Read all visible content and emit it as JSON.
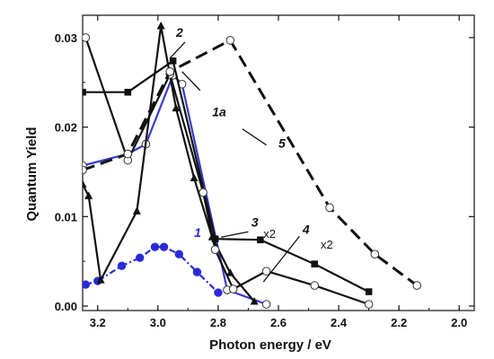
{
  "chart_data": {
    "type": "line",
    "xlabel": "Photon energy / eV",
    "ylabel": "Quantum Yield",
    "xlim": [
      3.25,
      1.95
    ],
    "ylim": [
      -0.0005,
      0.0325
    ],
    "x_reversed": true,
    "x_ticks": [
      3.2,
      3.0,
      2.8,
      2.6,
      2.4,
      2.2,
      2.0
    ],
    "x_tick_labels": [
      "3.2",
      "3.0",
      "2.8",
      "2.6",
      "2.4",
      "2.2",
      "2.0"
    ],
    "y_ticks": [
      0.0,
      0.01,
      0.02,
      0.03
    ],
    "y_tick_labels": [
      "0.00",
      "0.01",
      "0.02",
      "0.03"
    ],
    "series": [
      {
        "name": "1",
        "color": "#2b2bd6",
        "dash": "dotdash",
        "marker": "filled-circle",
        "x": [
          3.24,
          3.2,
          3.12,
          3.06,
          3.01,
          2.98,
          2.93,
          2.87,
          2.8
        ],
        "y": [
          0.0024,
          0.0028,
          0.0045,
          0.0054,
          0.0066,
          0.0066,
          0.0058,
          0.0038,
          0.0015
        ]
      },
      {
        "name": "1a",
        "color": "#3a3ad0",
        "dash": "solid",
        "marker": "open-circle",
        "x": [
          3.25,
          3.1,
          3.04,
          2.95,
          2.92,
          2.77,
          2.64
        ],
        "y": [
          0.0157,
          0.017,
          0.0181,
          0.0258,
          0.0248,
          0.0018,
          0.0002
        ]
      },
      {
        "name": "2",
        "color": "#111111",
        "dash": "solid",
        "marker": "filled-triangle",
        "x": [
          3.25,
          3.23,
          3.19,
          3.07,
          2.99,
          2.94,
          2.88,
          2.82,
          2.76,
          2.68
        ],
        "y": [
          0.0136,
          0.0123,
          0.0029,
          0.0106,
          0.0313,
          0.0221,
          0.0143,
          0.0077,
          0.0037,
          0.0005
        ]
      },
      {
        "name": "3",
        "note": "x2",
        "color": "#111111",
        "dash": "solid",
        "marker": "filled-square",
        "x": [
          3.25,
          3.1,
          2.95,
          2.81,
          2.66,
          2.48,
          2.3
        ],
        "y": [
          0.0239,
          0.0239,
          0.0274,
          0.0075,
          0.0074,
          0.0047,
          0.0016
        ]
      },
      {
        "name": "4",
        "note": "x2",
        "color": "#111111",
        "dash": "solid",
        "marker": "open-circle",
        "x": [
          3.24,
          3.1,
          2.96,
          2.85,
          2.81,
          2.75,
          2.64,
          2.48,
          2.3
        ],
        "y": [
          0.03,
          0.0163,
          0.0259,
          0.0127,
          0.0063,
          0.0019,
          0.0039,
          0.0023,
          0.0002
        ]
      },
      {
        "name": "5",
        "color": "#111111",
        "dash": "dashed",
        "marker": "open-circle",
        "x": [
          3.25,
          3.1,
          2.96,
          2.76,
          2.43,
          2.28,
          2.14
        ],
        "y": [
          0.0152,
          0.017,
          0.0262,
          0.0297,
          0.011,
          0.0058,
          0.0023
        ]
      }
    ],
    "annotations": [
      {
        "text": "1",
        "x": 2.88,
        "y": 0.0077
      },
      {
        "text": "1a",
        "x": 2.82,
        "y": 0.0212
      },
      {
        "text": "2",
        "x": 2.94,
        "y": 0.0301
      },
      {
        "text": "3",
        "x": 2.69,
        "y": 0.0089
      },
      {
        "text": "x2",
        "x": 2.65,
        "y": 0.0076
      },
      {
        "text": "4",
        "x": 2.52,
        "y": 0.0081
      },
      {
        "text": "x2",
        "x": 2.46,
        "y": 0.0064
      },
      {
        "text": "5",
        "x": 2.6,
        "y": 0.0177
      }
    ],
    "grid": false,
    "legend": "none"
  }
}
